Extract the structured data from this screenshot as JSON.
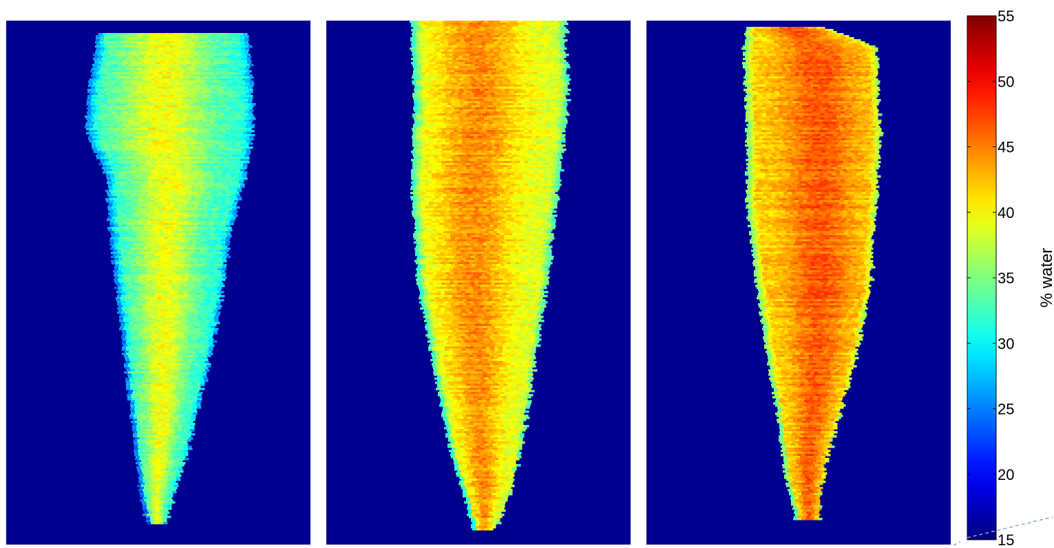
{
  "chart_data": {
    "type": "heatmap",
    "colormap": "jet",
    "background_color": "#00008f",
    "panels": [
      {
        "name": "panel-1",
        "mean": 31.5,
        "core_boost": 8,
        "core_center": 0.45,
        "noise": 3.2,
        "bands": 0.9,
        "profile": [
          [
            0.02,
            0.3,
            0.79
          ],
          [
            0.1,
            0.28,
            0.8
          ],
          [
            0.2,
            0.26,
            0.81
          ],
          [
            0.3,
            0.33,
            0.78
          ],
          [
            0.4,
            0.34,
            0.73
          ],
          [
            0.5,
            0.36,
            0.71
          ],
          [
            0.6,
            0.38,
            0.68
          ],
          [
            0.7,
            0.4,
            0.64
          ],
          [
            0.8,
            0.42,
            0.6
          ],
          [
            0.9,
            0.44,
            0.55
          ],
          [
            0.96,
            0.46,
            0.52
          ]
        ]
      },
      {
        "name": "panel-2",
        "mean": 38.5,
        "core_boost": 6,
        "core_center": 0.42,
        "noise": 3.0,
        "bands": 1.0,
        "profile": [
          [
            0.0,
            0.28,
            0.78
          ],
          [
            0.05,
            0.28,
            0.78
          ],
          [
            0.15,
            0.29,
            0.79
          ],
          [
            0.3,
            0.28,
            0.76
          ],
          [
            0.5,
            0.3,
            0.72
          ],
          [
            0.65,
            0.35,
            0.68
          ],
          [
            0.8,
            0.4,
            0.64
          ],
          [
            0.9,
            0.45,
            0.6
          ],
          [
            0.97,
            0.48,
            0.55
          ]
        ]
      },
      {
        "name": "panel-3",
        "mean": 41.5,
        "core_boost": 5,
        "core_center": 0.55,
        "noise": 2.8,
        "bands": 1.0,
        "profile": [
          [
            0.01,
            0.33,
            0.58
          ],
          [
            0.05,
            0.32,
            0.75
          ],
          [
            0.2,
            0.33,
            0.76
          ],
          [
            0.35,
            0.33,
            0.75
          ],
          [
            0.5,
            0.36,
            0.73
          ],
          [
            0.65,
            0.4,
            0.68
          ],
          [
            0.75,
            0.43,
            0.63
          ],
          [
            0.85,
            0.45,
            0.58
          ],
          [
            0.95,
            0.49,
            0.56
          ]
        ]
      }
    ],
    "colorbar": {
      "min": 15,
      "max": 55,
      "ticks": [
        15,
        20,
        25,
        30,
        35,
        40,
        45,
        50,
        55
      ],
      "label": "% water"
    }
  }
}
